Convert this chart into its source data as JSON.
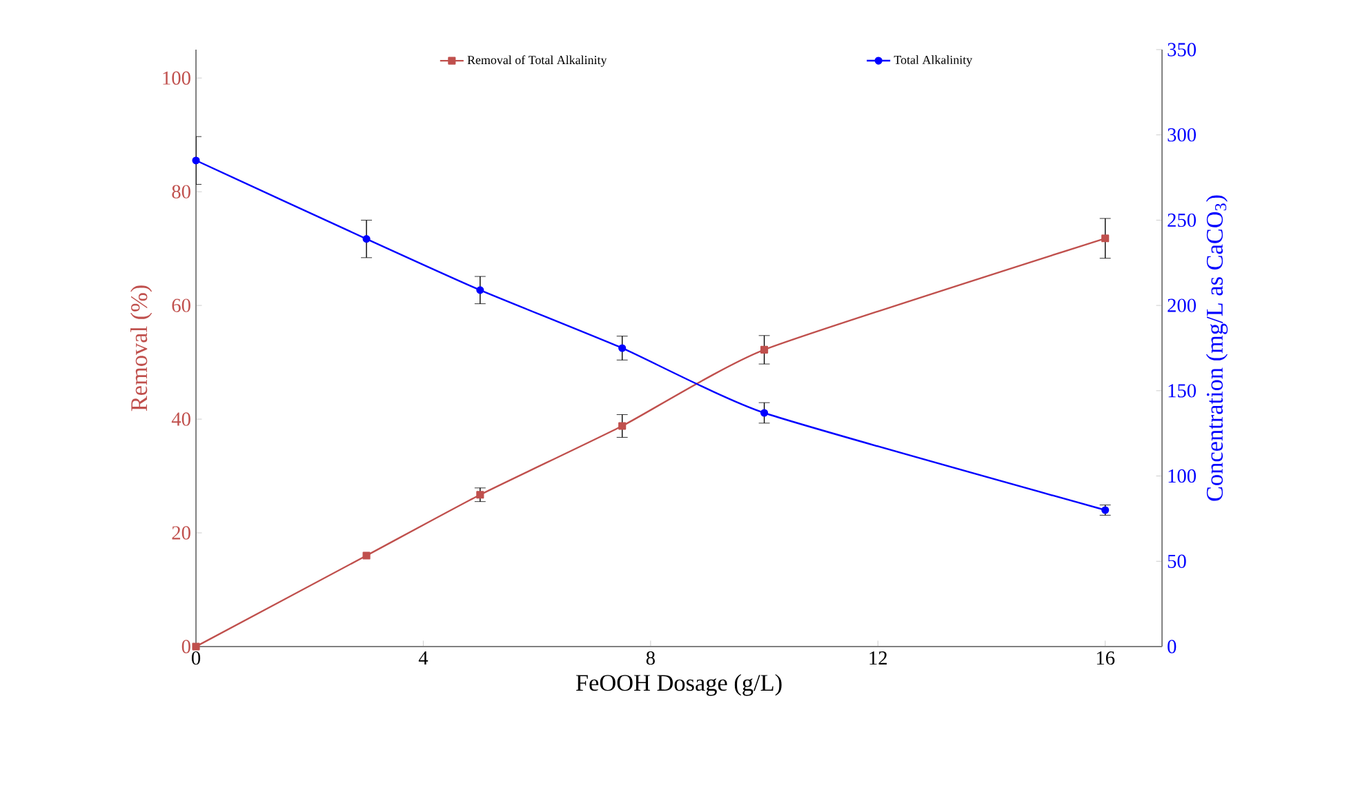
{
  "chart_data": {
    "type": "line",
    "xlabel": "FeOOH Dosage  (g/L)",
    "ylabel": "Removal  (%)",
    "y2label": "Concentration  (mg/L as CaCO$_{3}$)",
    "x": [
      0,
      3,
      5,
      7.5,
      10,
      16
    ],
    "series": [
      {
        "name": "Removal of Total Alkalinity",
        "color": "#c0504d",
        "values": [
          0,
          16,
          26.7,
          38.8,
          52.2,
          71.8
        ],
        "errors": [
          null,
          null,
          1.2,
          2,
          2.5,
          3.5
        ],
        "marker": "square"
      },
      {
        "name": "Total Alkalinity",
        "color": "#0000ff",
        "axis": "y2",
        "values": [
          285,
          239,
          209,
          175,
          137,
          80
        ],
        "errors": [
          14,
          11,
          8,
          7,
          6,
          3
        ],
        "marker": "circle"
      }
    ],
    "xlim": [
      0,
      17
    ],
    "xticks": [
      0,
      4,
      8,
      12,
      16
    ],
    "ylim": [
      0,
      105
    ],
    "yticks": [
      0,
      20,
      40,
      60,
      80,
      100
    ],
    "y2lim": [
      0,
      350
    ],
    "y2ticks": [
      0,
      50,
      100,
      150,
      200,
      250,
      300,
      350
    ],
    "legend": "top",
    "grid": false,
    "line_style": "solid"
  }
}
